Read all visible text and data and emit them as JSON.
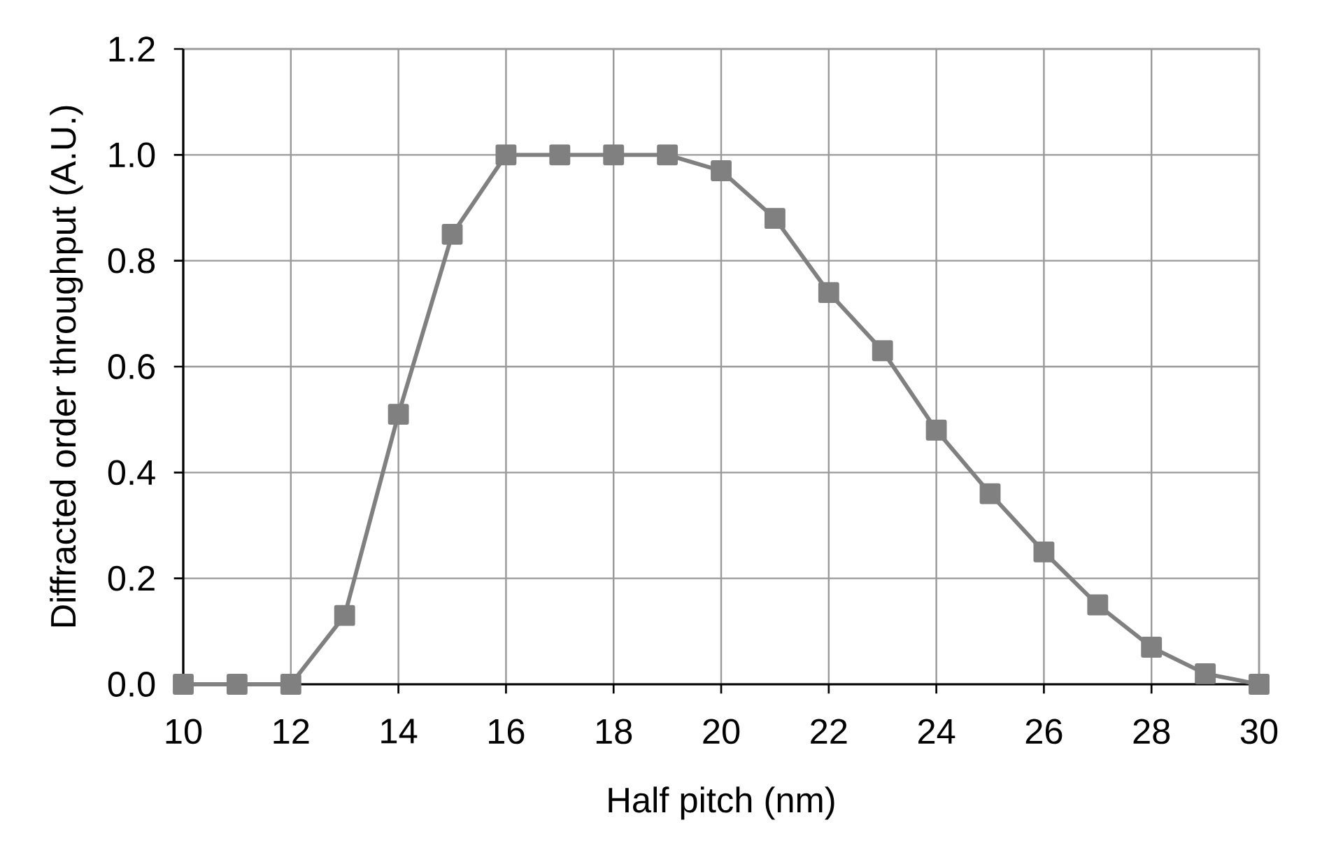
{
  "chart_data": {
    "type": "line",
    "xlabel": "Half pitch (nm)",
    "ylabel": "Diffracted order throughput (A.U.)",
    "x": [
      10,
      11,
      12,
      13,
      14,
      15,
      16,
      17,
      18,
      19,
      20,
      21,
      22,
      23,
      24,
      25,
      26,
      27,
      28,
      29,
      30
    ],
    "series": [
      {
        "color": "#808080",
        "values": [
          0,
          0,
          0,
          0.13,
          0.51,
          0.85,
          1.0,
          1.0,
          1.0,
          1.0,
          0.97,
          0.88,
          0.74,
          0.63,
          0.48,
          0.36,
          0.25,
          0.15,
          0.07,
          0.02,
          0
        ]
      }
    ],
    "xlim": [
      10,
      30
    ],
    "xticks": [
      10,
      12,
      14,
      16,
      18,
      20,
      22,
      24,
      26,
      28,
      30
    ],
    "ylim": [
      0,
      1.2
    ],
    "yticks": [
      {
        "value": 0,
        "label": "0.0"
      },
      {
        "value": 0.2,
        "label": "0.2"
      },
      {
        "value": 0.4,
        "label": "0.4"
      },
      {
        "value": 0.6,
        "label": "0.6"
      },
      {
        "value": 0.8,
        "label": "0.8"
      },
      {
        "value": 1.0,
        "label": "1.0"
      },
      {
        "value": 1.2,
        "label": "1.2"
      }
    ],
    "grid": true,
    "marker": "square",
    "line_style": "solid"
  }
}
